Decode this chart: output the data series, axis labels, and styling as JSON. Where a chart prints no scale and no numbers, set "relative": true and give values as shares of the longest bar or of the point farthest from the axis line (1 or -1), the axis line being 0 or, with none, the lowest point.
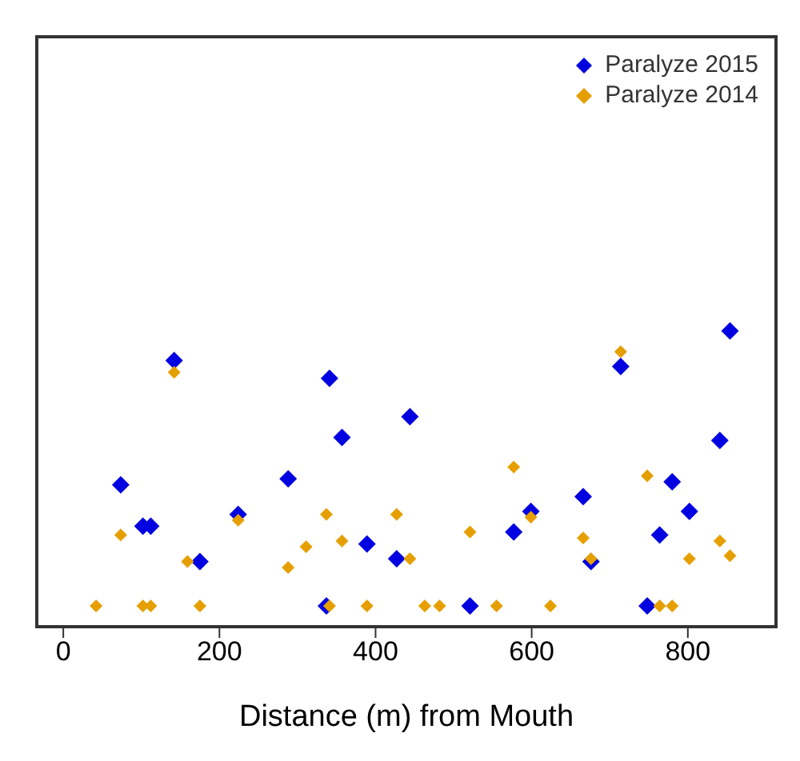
{
  "chart_data": {
    "type": "scatter",
    "xlabel": "Distance (m) from Mouth",
    "relative": true,
    "xlim": [
      -36,
      915
    ],
    "xticks": [
      0,
      200,
      400,
      600,
      800
    ],
    "marker": "diamond",
    "legend": "top right",
    "grid": false,
    "series": [
      {
        "name": "Paralyze 2015",
        "color": "#0000e0",
        "x": [
          73.5,
          102,
          112,
          142,
          175,
          224,
          288,
          337,
          341,
          357,
          389,
          427,
          444,
          521,
          577,
          599,
          666,
          676,
          714,
          748,
          764,
          780,
          802,
          841,
          854
        ],
        "values": [
          0.48,
          0.34,
          0.34,
          0.9,
          0.22,
          0.38,
          0.5,
          0.07,
          0.84,
          0.64,
          0.28,
          0.23,
          0.71,
          0.07,
          0.32,
          0.39,
          0.44,
          0.22,
          0.88,
          0.07,
          0.31,
          0.49,
          0.39,
          0.63,
          1
        ]
      },
      {
        "name": "Paralyze 2014",
        "color": "#e69f00",
        "x": [
          42,
          73.5,
          102,
          112,
          142,
          159,
          175,
          224,
          288,
          311,
          337,
          341,
          357,
          389,
          427,
          444,
          463,
          482,
          521,
          555,
          577,
          599,
          624,
          666,
          676,
          714,
          748,
          764,
          780,
          802,
          841,
          854
        ],
        "values": [
          0.07,
          0.31,
          0.07,
          0.07,
          0.86,
          0.22,
          0.07,
          0.36,
          0.2,
          0.27,
          0.38,
          0.07,
          0.29,
          0.07,
          0.38,
          0.23,
          0.07,
          0.07,
          0.32,
          0.07,
          0.54,
          0.37,
          0.07,
          0.3,
          0.23,
          0.93,
          0.51,
          0.07,
          0.07,
          0.23,
          0.29,
          0.24
        ]
      }
    ]
  }
}
